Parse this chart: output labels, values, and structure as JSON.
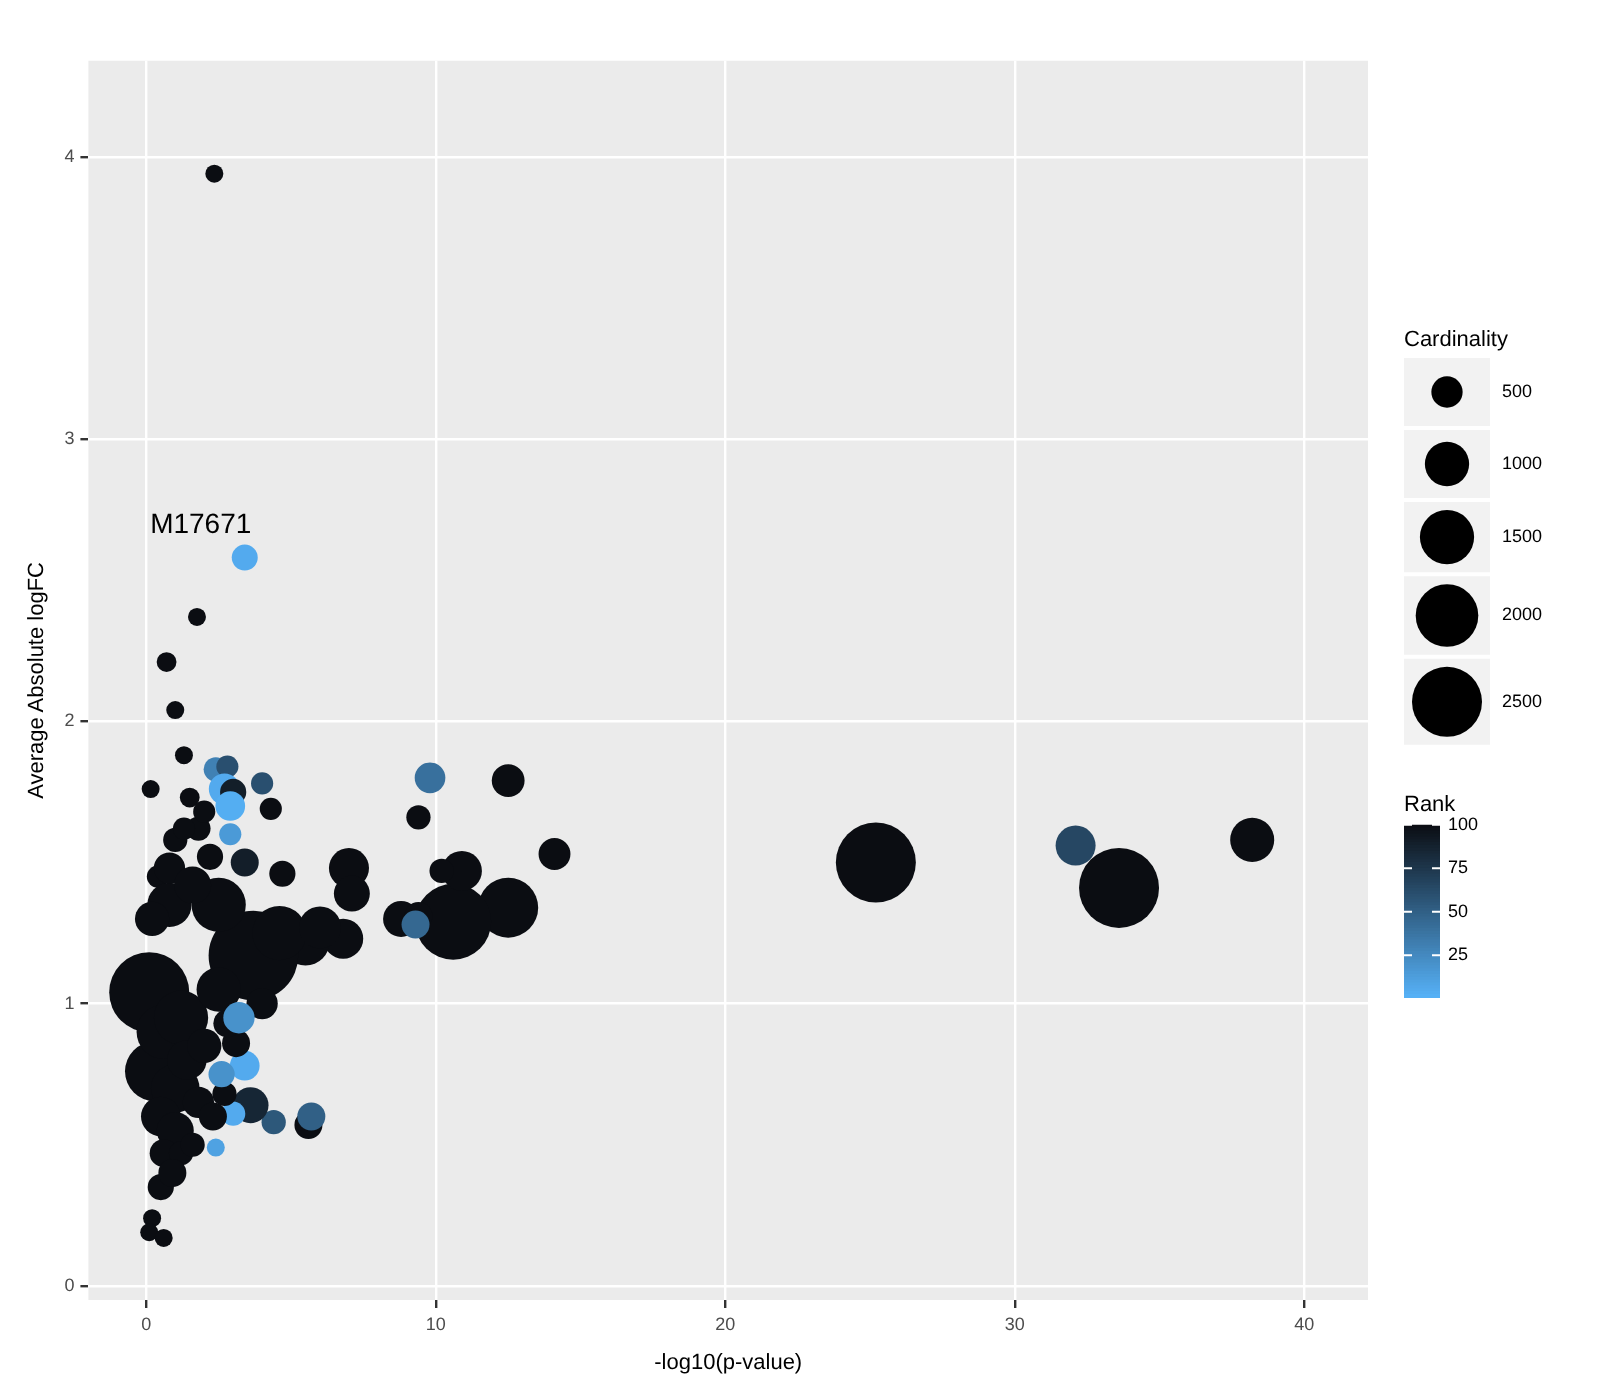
{
  "chart_data": {
    "type": "bubble",
    "xlabel": "-log10(p-value)",
    "ylabel": "Average Absolute logFC",
    "legend_title": "Cardinality",
    "clabel": "Rank",
    "xlim": [
      -2,
      42.2
    ],
    "ylim": [
      -0.05,
      4.34
    ],
    "xticks": [
      0,
      10,
      20,
      30,
      40
    ],
    "yticks": [
      0,
      1,
      2,
      3,
      4
    ],
    "grid": true,
    "size_legend": [
      500,
      1000,
      1500,
      2000,
      2500
    ],
    "clim": [
      1,
      100
    ],
    "cticks": [
      25,
      50,
      75,
      100
    ],
    "annotations": [
      {
        "text": "M17671",
        "x": 3.4,
        "y": 2.58
      }
    ],
    "x": [
      2.35,
      3.4,
      1.75,
      0.7,
      1.0,
      0.15,
      1.3,
      2.4,
      2.8,
      2.7,
      3.0,
      4.0,
      2.9,
      1.5,
      4.3,
      1.8,
      2.9,
      1.0,
      0.4,
      3.4,
      2.2,
      4.7,
      9.8,
      12.5,
      9.4,
      14.1,
      25.2,
      32.1,
      33.6,
      38.2,
      12.5,
      10.6,
      10.9,
      10.2,
      7.0,
      7.1,
      8.8,
      9.4,
      6.8,
      5.5,
      9.3,
      3.7,
      0.1,
      0.3,
      0.2,
      0.1,
      0.6,
      5.6,
      5.7,
      4.4,
      3.6,
      2.4,
      3.4,
      3.0,
      2.7,
      3.1,
      2.8,
      2.6,
      0.6,
      1.2,
      0.8,
      2.5,
      4.6,
      1.0,
      1.4,
      0.5,
      1.0,
      0.6,
      1.2,
      1.6,
      0.8,
      1.6,
      2.0,
      1.8,
      2.3,
      0.2,
      4.0,
      2.5,
      3.2,
      0.5,
      0.9,
      6.0,
      1.3,
      2.0
    ],
    "values": [
      3.94,
      2.58,
      2.37,
      2.21,
      2.04,
      1.76,
      1.88,
      1.83,
      1.84,
      1.76,
      1.75,
      1.78,
      1.7,
      1.73,
      1.69,
      1.62,
      1.6,
      1.58,
      1.45,
      1.5,
      1.52,
      1.46,
      1.8,
      1.79,
      1.66,
      1.53,
      1.5,
      1.56,
      1.41,
      1.58,
      1.34,
      1.29,
      1.47,
      1.47,
      1.48,
      1.39,
      1.3,
      1.31,
      1.23,
      1.22,
      1.28,
      1.17,
      1.04,
      0.76,
      0.24,
      0.19,
      0.17,
      0.57,
      0.6,
      0.58,
      0.64,
      0.49,
      0.78,
      0.61,
      0.68,
      0.86,
      0.93,
      0.75,
      0.9,
      0.95,
      1.35,
      1.35,
      1.25,
      0.7,
      0.8,
      0.6,
      0.55,
      0.47,
      0.47,
      0.5,
      1.48,
      1.42,
      0.85,
      0.65,
      0.6,
      1.3,
      1.0,
      1.05,
      0.95,
      0.35,
      0.4,
      1.27,
      1.62,
      1.68
    ],
    "sizes": [
      165,
      345,
      165,
      200,
      165,
      165,
      165,
      300,
      250,
      500,
      350,
      250,
      450,
      200,
      250,
      300,
      250,
      300,
      250,
      400,
      350,
      350,
      480,
      550,
      300,
      520,
      3265,
      816,
      3265,
      990,
      1837,
      2947,
      820,
      300,
      820,
      660,
      660,
      400,
      820,
      1180,
      400,
      4100,
      3265,
      1837,
      165,
      165,
      165,
      400,
      400,
      300,
      660,
      165,
      450,
      300,
      300,
      400,
      400,
      350,
      1500,
      1500,
      1000,
      1500,
      1500,
      1200,
      800,
      800,
      700,
      400,
      300,
      300,
      500,
      700,
      600,
      500,
      400,
      600,
      500,
      1000,
      500,
      350,
      400,
      900,
      250,
      250
    ],
    "cvalues": [
      100,
      5,
      100,
      100,
      100,
      100,
      100,
      30,
      60,
      5,
      90,
      60,
      3,
      100,
      100,
      100,
      15,
      100,
      100,
      90,
      100,
      100,
      40,
      100,
      100,
      100,
      100,
      65,
      100,
      100,
      100,
      100,
      100,
      100,
      100,
      100,
      100,
      100,
      100,
      100,
      45,
      100,
      100,
      100,
      100,
      100,
      100,
      100,
      50,
      55,
      85,
      10,
      5,
      5,
      100,
      100,
      100,
      20,
      100,
      100,
      100,
      100,
      100,
      100,
      100,
      100,
      100,
      100,
      100,
      100,
      100,
      100,
      100,
      100,
      100,
      100,
      100,
      100,
      20,
      100,
      100,
      100,
      100,
      100
    ]
  }
}
